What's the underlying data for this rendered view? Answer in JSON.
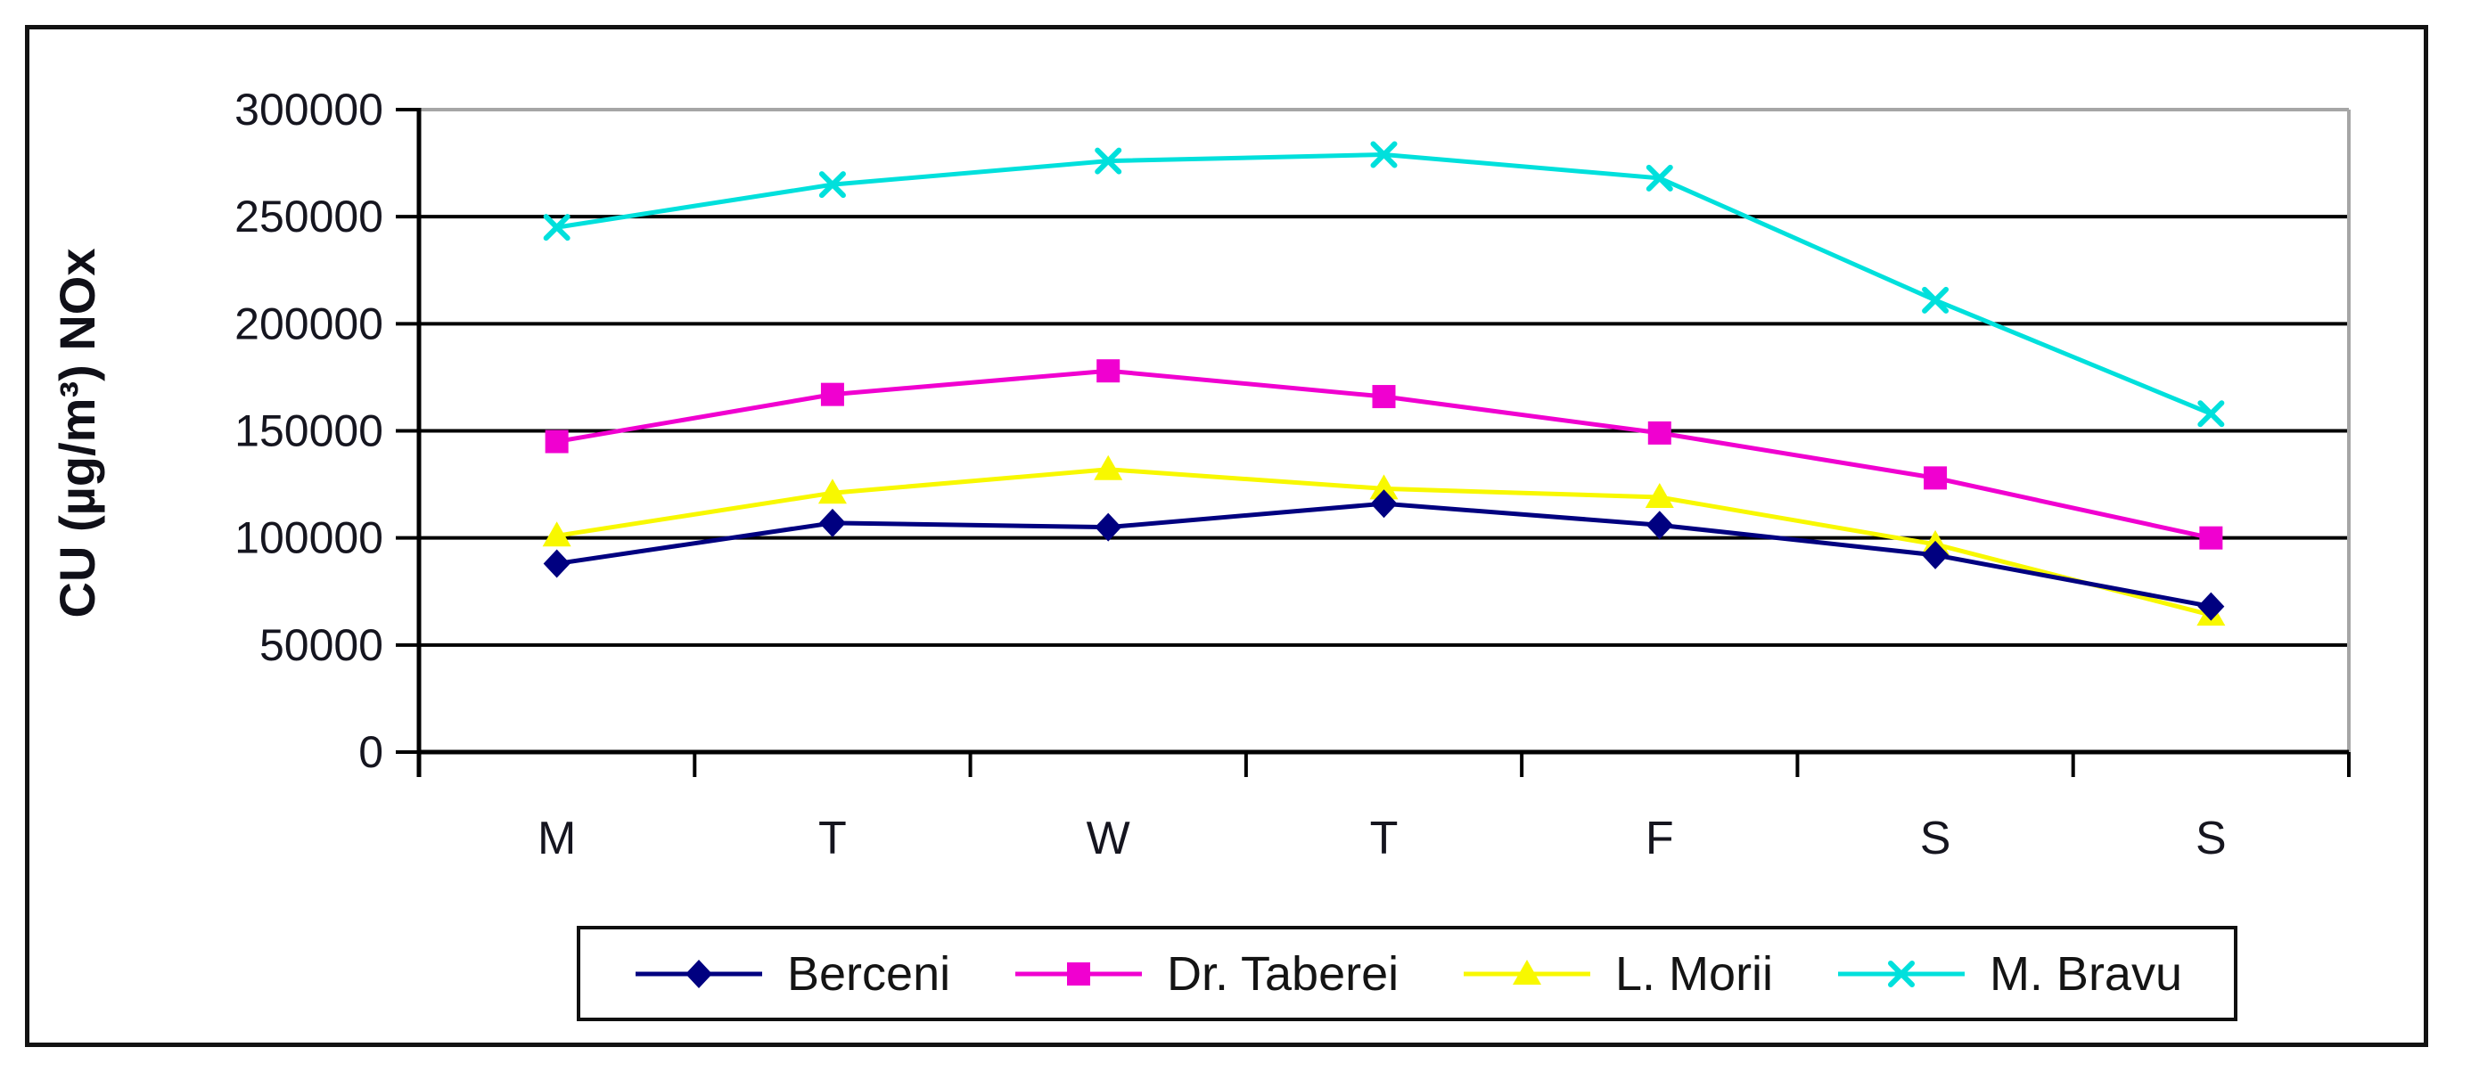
{
  "chart_data": {
    "type": "line",
    "title": "",
    "xlabel": "",
    "ylabel": "CU (µg/m³) NOx",
    "categories": [
      "M",
      "T",
      "W",
      "T",
      "F",
      "S",
      "S"
    ],
    "series": [
      {
        "name": "Berceni",
        "color": "#000080",
        "marker": "diamond",
        "values": [
          88000,
          107000,
          105000,
          116000,
          106000,
          92000,
          68000
        ]
      },
      {
        "name": "Dr. Taberei",
        "color": "#f000d0",
        "marker": "square",
        "values": [
          145000,
          167000,
          178000,
          166000,
          149000,
          128000,
          100000
        ]
      },
      {
        "name": "L. Morii",
        "color": "#f8f800",
        "marker": "triangle",
        "values": [
          101000,
          121000,
          132000,
          123000,
          119000,
          97000,
          64000
        ]
      },
      {
        "name": "M. Bravu",
        "color": "#00e0dc",
        "marker": "x",
        "values": [
          245000,
          265000,
          276000,
          279000,
          268000,
          211000,
          158000
        ]
      }
    ],
    "ylim": [
      0,
      300000
    ],
    "ytick_step": 50000,
    "yticks": [
      0,
      50000,
      100000,
      150000,
      200000,
      250000,
      300000
    ],
    "grid": true,
    "legend_position": "bottom",
    "axis_color": "#000000",
    "plot_border_color": "#a6a6a6"
  }
}
